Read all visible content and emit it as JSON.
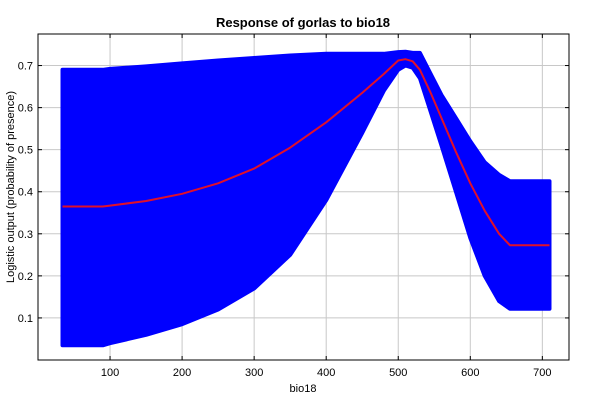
{
  "chart_data": {
    "type": "area",
    "title": "Response of gorlas to bio18",
    "xlabel": "bio18",
    "ylabel": "Logistic output (probability of presence)",
    "xlim": [
      0,
      737
    ],
    "ylim": [
      0,
      0.775
    ],
    "xticks": [
      100,
      200,
      300,
      400,
      500,
      600,
      700
    ],
    "yticks": [
      0.1,
      0.2,
      0.3,
      0.4,
      0.5,
      0.6,
      0.7
    ],
    "grid": true,
    "colors": {
      "band": "#0000ff",
      "mean": "#e0102a",
      "grid": "#c8c8c8",
      "axis": "#000000"
    },
    "series": [
      {
        "role": "band-upper",
        "x": [
          34,
          90,
          100,
          150,
          200,
          250,
          300,
          350,
          400,
          450,
          480,
          500,
          510,
          520,
          530,
          545,
          560,
          580,
          600,
          620,
          640,
          655,
          710
        ],
        "y": [
          0.69,
          0.69,
          0.692,
          0.698,
          0.705,
          0.712,
          0.718,
          0.724,
          0.728,
          0.728,
          0.728,
          0.732,
          0.733,
          0.73,
          0.73,
          0.68,
          0.63,
          0.575,
          0.52,
          0.47,
          0.44,
          0.425,
          0.425
        ]
      },
      {
        "role": "mean",
        "x": [
          34,
          90,
          100,
          150,
          200,
          250,
          300,
          350,
          400,
          450,
          480,
          500,
          510,
          520,
          530,
          545,
          560,
          580,
          600,
          620,
          640,
          655,
          710
        ],
        "y": [
          0.365,
          0.365,
          0.367,
          0.378,
          0.395,
          0.42,
          0.455,
          0.505,
          0.565,
          0.635,
          0.68,
          0.712,
          0.715,
          0.71,
          0.69,
          0.635,
          0.575,
          0.495,
          0.42,
          0.355,
          0.3,
          0.273,
          0.273
        ]
      },
      {
        "role": "band-lower",
        "x": [
          34,
          90,
          100,
          150,
          200,
          250,
          300,
          350,
          400,
          450,
          480,
          500,
          510,
          520,
          530,
          545,
          560,
          580,
          600,
          620,
          640,
          655,
          710
        ],
        "y": [
          0.035,
          0.035,
          0.04,
          0.06,
          0.085,
          0.12,
          0.17,
          0.25,
          0.38,
          0.54,
          0.64,
          0.69,
          0.7,
          0.695,
          0.67,
          0.59,
          0.51,
          0.4,
          0.29,
          0.2,
          0.14,
          0.122,
          0.122
        ]
      }
    ]
  }
}
